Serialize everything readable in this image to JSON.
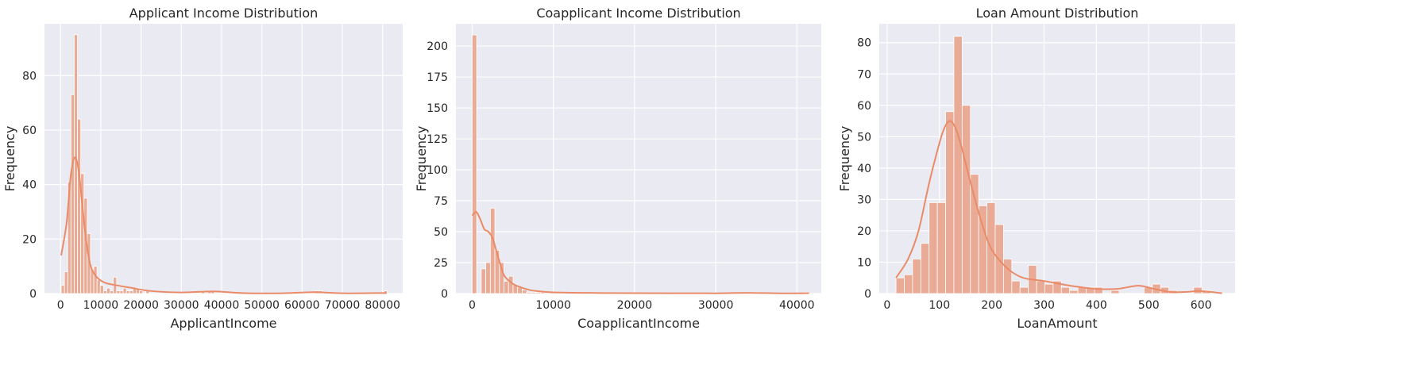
{
  "colors": {
    "panel_bg": "#eaeaf2",
    "grid": "#ffffff",
    "bar_fill": "#e9ab96",
    "bar_edge": "#ffffff",
    "kde": "#e98b68",
    "text": "#262626"
  },
  "chart_data": [
    {
      "type": "bar",
      "title": "Applicant Income Distribution",
      "xlabel": "ApplicantIncome",
      "ylabel": "Frequency",
      "xlim": [
        -4000,
        85000
      ],
      "ylim": [
        0,
        99
      ],
      "xticks": [
        0,
        10000,
        20000,
        30000,
        40000,
        50000,
        60000,
        70000,
        80000
      ],
      "yticks": [
        0,
        20,
        40,
        60,
        80
      ],
      "grid": true,
      "bin_start": 150,
      "bin_width": 810,
      "counts": [
        3,
        8,
        41,
        73,
        95,
        64,
        44,
        35,
        22,
        9,
        10,
        5,
        3,
        1,
        2,
        1,
        6,
        1,
        1,
        2,
        1,
        1,
        2,
        2,
        1,
        0,
        1,
        0,
        0,
        0,
        0,
        0,
        0,
        0,
        0,
        0,
        0,
        0,
        0,
        0,
        0,
        0,
        0,
        1,
        0,
        1,
        1,
        0,
        0,
        0,
        0,
        0,
        0,
        0,
        0,
        0,
        0,
        0,
        0,
        0,
        0,
        0,
        0,
        0,
        0,
        0,
        0,
        0,
        0,
        0,
        0,
        0,
        0,
        0,
        0,
        0,
        0,
        0,
        1,
        1,
        0,
        0,
        0,
        0,
        0,
        0,
        0,
        0,
        0,
        0,
        0,
        0,
        0,
        0,
        0,
        0,
        0,
        0,
        0,
        1
      ],
      "kde": {
        "x": [
          150,
          1500,
          2500,
          3500,
          4500,
          5500,
          6500,
          7500,
          9000,
          11000,
          14000,
          18000,
          22000,
          30000,
          38000,
          45000,
          55000,
          63000,
          70000,
          81000
        ],
        "y": [
          14,
          26,
          43,
          50,
          45,
          31,
          18,
          10,
          6,
          4,
          3,
          2,
          1,
          0.4,
          0.8,
          0.2,
          0.1,
          0.5,
          0.1,
          0.2
        ]
      }
    },
    {
      "type": "bar",
      "title": "Coapplicant Income Distribution",
      "xlabel": "CoapplicantIncome",
      "ylabel": "Frequency",
      "xlim": [
        -2000,
        43000
      ],
      "ylim": [
        0,
        218
      ],
      "xticks": [
        0,
        10000,
        20000,
        30000,
        40000
      ],
      "yticks": [
        0,
        25,
        50,
        75,
        100,
        125,
        150,
        175,
        200
      ],
      "grid": true,
      "bin_start": 0,
      "bin_width": 560,
      "counts": [
        209,
        0,
        20,
        25,
        69,
        35,
        25,
        10,
        14,
        7,
        5,
        3,
        1,
        1,
        1,
        1,
        0,
        1,
        1,
        0,
        0,
        0,
        0,
        0,
        0,
        0,
        0,
        0,
        0,
        0,
        0,
        0,
        0,
        0,
        0,
        0,
        0,
        0,
        0,
        0,
        0,
        0,
        0,
        0,
        0,
        0,
        0,
        0,
        0,
        0,
        0,
        0,
        0,
        0,
        0,
        0,
        0,
        0,
        0,
        0,
        1,
        1,
        1,
        0,
        0,
        0,
        0,
        0,
        0,
        0,
        0,
        0,
        0,
        1
      ],
      "kde": {
        "x": [
          0,
          500,
          1000,
          1500,
          2000,
          2500,
          3000,
          3500,
          4000,
          5000,
          6000,
          7000,
          8000,
          10000,
          15000,
          20000,
          30000,
          34000,
          38000,
          41500
        ],
        "y": [
          63,
          66,
          60,
          52,
          50,
          45,
          34,
          23,
          14,
          8,
          5,
          3,
          2,
          1,
          0.5,
          0.3,
          0.2,
          0.6,
          0.2,
          0.3
        ]
      }
    },
    {
      "type": "bar",
      "title": "Loan Amount Distribution",
      "xlabel": "LoanAmount",
      "ylabel": "Frequency",
      "xlim": [
        -15,
        665
      ],
      "ylim": [
        0,
        86
      ],
      "xticks": [
        0,
        100,
        200,
        300,
        400,
        500,
        600
      ],
      "yticks": [
        0,
        10,
        20,
        30,
        40,
        50,
        60,
        70,
        80
      ],
      "grid": true,
      "bin_start": 17,
      "bin_width": 15.8,
      "counts": [
        5,
        6,
        11,
        16,
        29,
        29,
        58,
        82,
        60,
        38,
        28,
        29,
        22,
        11,
        4,
        2,
        9,
        4,
        3,
        4,
        2,
        1,
        2,
        2,
        2,
        0,
        1,
        0,
        0,
        0,
        2,
        3,
        2,
        1,
        0,
        0,
        2,
        1,
        0,
        0
      ],
      "kde": {
        "x": [
          17,
          40,
          60,
          80,
          100,
          110,
          120,
          130,
          140,
          160,
          180,
          200,
          230,
          260,
          300,
          350,
          400,
          440,
          480,
          510,
          540,
          570,
          600,
          640
        ],
        "y": [
          5,
          11,
          20,
          35,
          48,
          53,
          55,
          53,
          48,
          35,
          23,
          14,
          8,
          5,
          4,
          2.5,
          1.5,
          1.5,
          2.5,
          1.5,
          0.5,
          0.5,
          0.8,
          0.1
        ]
      }
    }
  ]
}
